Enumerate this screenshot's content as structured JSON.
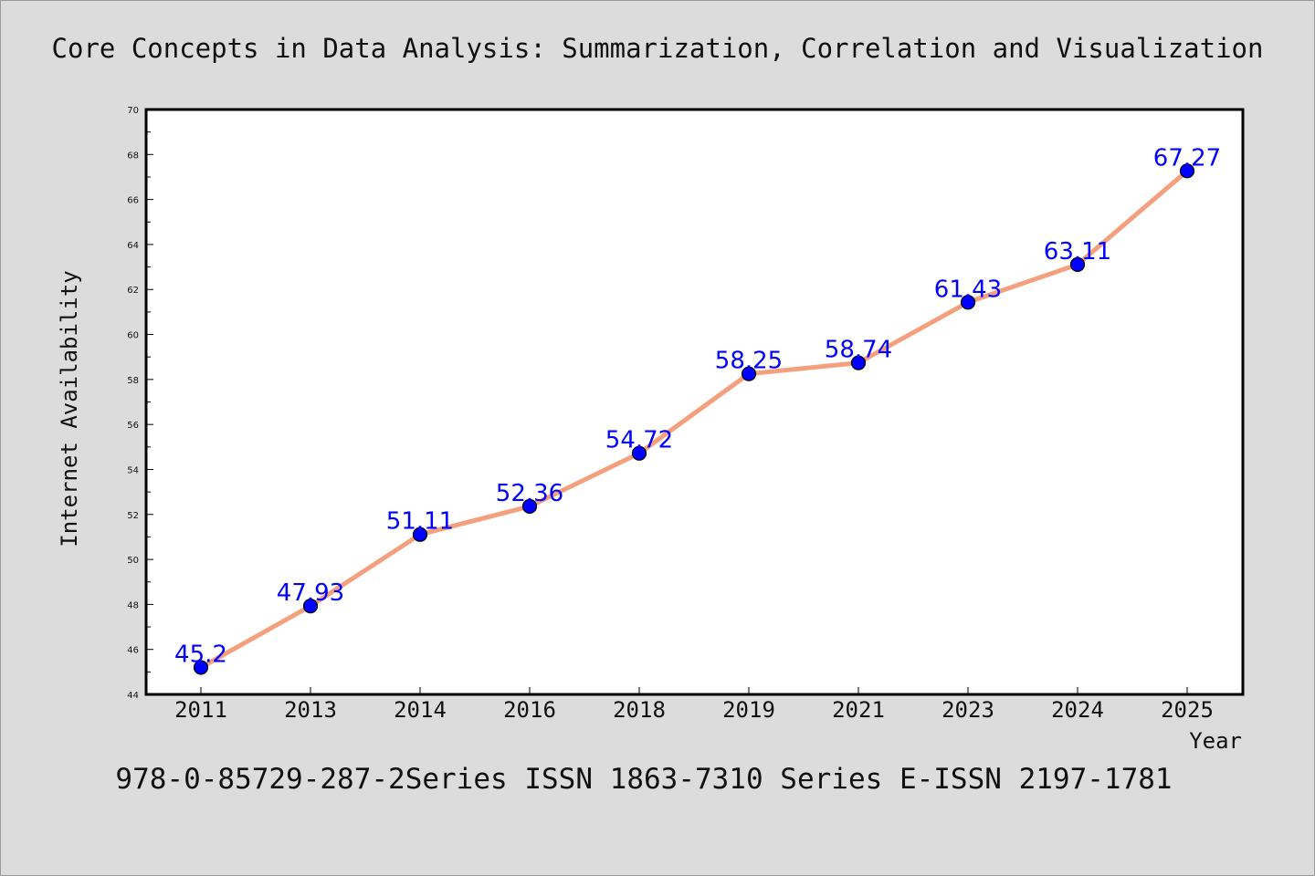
{
  "colors": {
    "background": "#dcdcdc",
    "plot_background": "#ffffff",
    "line": "#f4a07e",
    "marker": "#0000ff",
    "data_label": "#0000ff"
  },
  "chart_data": {
    "type": "line",
    "title": "Core Concepts in Data Analysis: Summarization, Correlation and Visualization",
    "xlabel": "Year",
    "ylabel": "Internet Availability",
    "categories": [
      "2011",
      "2013",
      "2014",
      "2016",
      "2018",
      "2019",
      "2021",
      "2023",
      "2024",
      "2025"
    ],
    "series": [
      {
        "values": [
          45.2,
          47.93,
          51.11,
          52.36,
          54.72,
          58.25,
          58.74,
          61.43,
          63.11,
          67.27
        ]
      }
    ],
    "data_labels": [
      "45.2",
      "47.93",
      "51.11",
      "52.36",
      "54.72",
      "58.25",
      "58.74",
      "61.43",
      "63.11",
      "67.27"
    ],
    "ylim": [
      44,
      70
    ],
    "yticks": [
      "44",
      "46",
      "48",
      "50",
      "52",
      "54",
      "56",
      "58",
      "60",
      "62",
      "64",
      "66",
      "68",
      "70"
    ],
    "grid": false,
    "legend": "none"
  },
  "footer": {
    "text": "978-0-85729-287-2Series ISSN 1863-7310 Series E-ISSN 2197-1781"
  }
}
